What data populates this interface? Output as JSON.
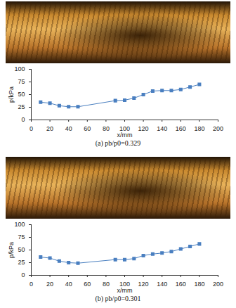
{
  "chart_data": [
    {
      "type": "line",
      "title": "(a) pb/p0=0.329",
      "x_label": "x/mm",
      "y_label": "p/kPa",
      "x": [
        10,
        20,
        30,
        40,
        50,
        90,
        100,
        110,
        120,
        130,
        140,
        150,
        160,
        170,
        180
      ],
      "values": [
        35,
        33,
        28,
        26,
        26,
        38,
        39,
        43,
        50,
        57,
        58,
        58,
        60,
        65,
        70
      ],
      "color": "#4a7fc0",
      "marker": "square",
      "xlim": [
        0,
        200
      ],
      "xticks": [
        0,
        20,
        40,
        60,
        80,
        100,
        120,
        140,
        160,
        180,
        200
      ],
      "ylim": [
        0,
        100
      ],
      "yticks": [
        0,
        25,
        50,
        75,
        100
      ]
    },
    {
      "type": "line",
      "title": "(b) pb/p0=0.301",
      "x_label": "x/mm",
      "y_label": "p/kPa",
      "x": [
        10,
        20,
        30,
        40,
        50,
        90,
        100,
        110,
        120,
        130,
        140,
        150,
        160,
        170,
        180
      ],
      "values": [
        36,
        34,
        28,
        25,
        24,
        31,
        31,
        33,
        39,
        42,
        44,
        47,
        52,
        57,
        62
      ],
      "color": "#4a7fc0",
      "marker": "square",
      "xlim": [
        0,
        200
      ],
      "xticks": [
        0,
        20,
        40,
        60,
        80,
        100,
        120,
        140,
        160,
        180,
        200
      ],
      "ylim": [
        0,
        100
      ],
      "yticks": [
        0,
        25,
        50,
        75,
        100
      ]
    }
  ]
}
